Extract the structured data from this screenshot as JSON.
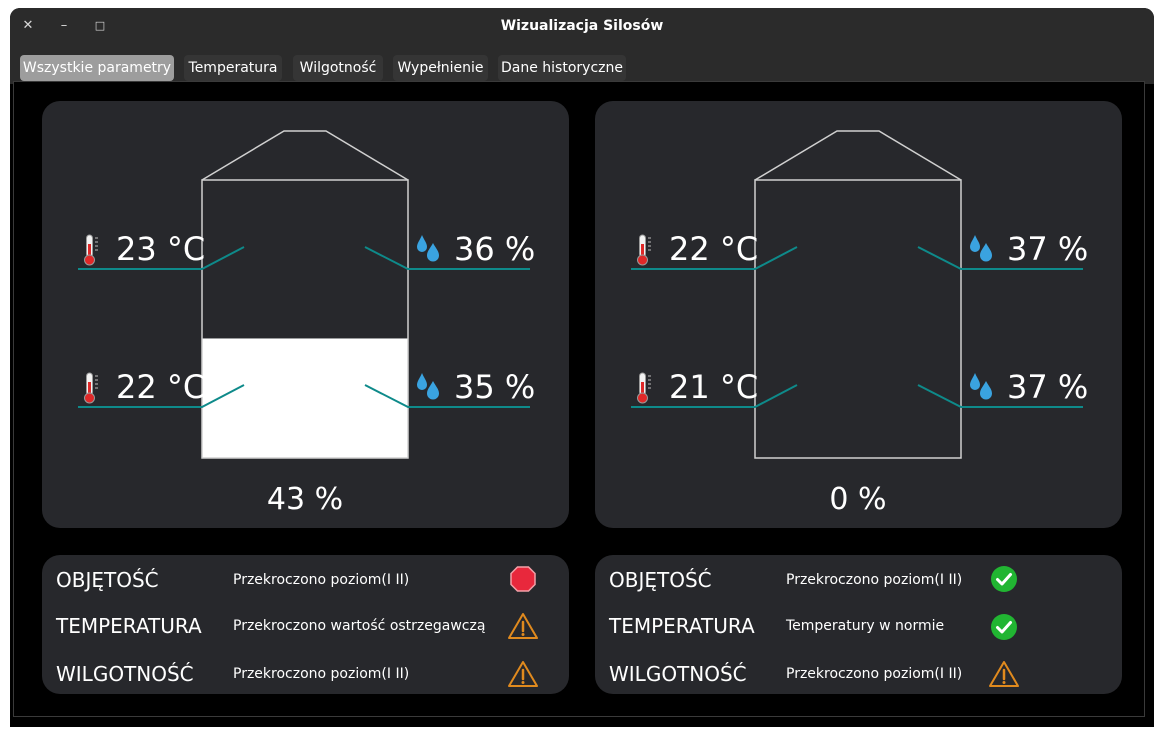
{
  "window": {
    "title": "Wizualizacja Silosów",
    "close_symbol": "✕",
    "minimize_symbol": "–",
    "maximize_symbol": "□"
  },
  "tabs": [
    {
      "label": "Wszystkie parametry",
      "active": true
    },
    {
      "label": "Temperatura",
      "active": false
    },
    {
      "label": "Wilgotność",
      "active": false
    },
    {
      "label": "Wypełnienie",
      "active": false
    },
    {
      "label": "Dane historyczne",
      "active": false
    }
  ],
  "colors": {
    "accent_line": "#0e8a8a",
    "panel": "#27282c",
    "stop": "#e8283c",
    "warning": "#e08a1e",
    "ok": "#21b532"
  },
  "silos": [
    {
      "fill_label": "43 %",
      "fill_fraction": 0.43,
      "upper_temp": "23 °C",
      "upper_humidity": "36 %",
      "lower_temp": "22 °C",
      "lower_humidity": "35 %"
    },
    {
      "fill_label": "0 %",
      "fill_fraction": 0.0,
      "upper_temp": "22 °C",
      "upper_humidity": "37 %",
      "lower_temp": "21 °C",
      "lower_humidity": "37 %"
    }
  ],
  "status": [
    {
      "rows": [
        {
          "label": "OBJĘTOŚĆ",
          "message": "Przekroczono poziom(I II)",
          "icon": "stop-icon"
        },
        {
          "label": "TEMPERATURA",
          "message": "Przekroczono wartość ostrzegawczą",
          "icon": "warning-icon"
        },
        {
          "label": "WILGOTNOŚĆ",
          "message": "Przekroczono poziom(I II)",
          "icon": "warning-icon"
        }
      ]
    },
    {
      "rows": [
        {
          "label": "OBJĘTOŚĆ",
          "message": "Przekroczono poziom(I II)",
          "icon": "ok-icon"
        },
        {
          "label": "TEMPERATURA",
          "message": "Temperatury w normie",
          "icon": "ok-icon"
        },
        {
          "label": "WILGOTNOŚĆ",
          "message": "Przekroczono poziom(I II)",
          "icon": "warning-icon"
        }
      ]
    }
  ]
}
